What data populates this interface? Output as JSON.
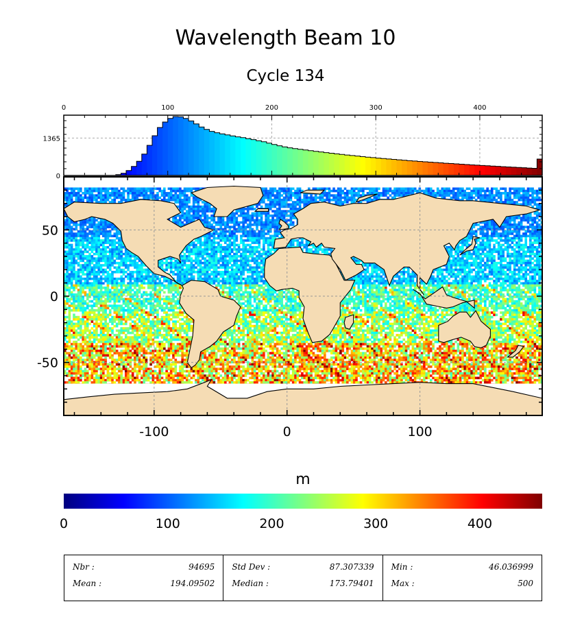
{
  "title": "Wavelength Beam 10",
  "subtitle": "Cycle 134",
  "colors": {
    "land": "#f5dcb4",
    "ocean_empty": "#ffffff",
    "histogram_outline": "#000000",
    "colormap": [
      "#00007f",
      "#0000ff",
      "#007fff",
      "#00ffff",
      "#7fff7f",
      "#ffff00",
      "#ff7f00",
      "#ff0000",
      "#7f0000"
    ]
  },
  "chart_data": [
    {
      "type": "bar",
      "name": "histogram",
      "x_ticks": [
        "0",
        "100",
        "200",
        "300",
        "400"
      ],
      "x_tick_values": [
        0,
        100,
        200,
        300,
        400
      ],
      "xlim": [
        0,
        460
      ],
      "y_ticks": [
        "0",
        "1365"
      ],
      "y_tick_values": [
        0,
        1365
      ],
      "ylim": [
        0,
        2200
      ],
      "grid": true,
      "bin_width": 5,
      "bin_starts": [
        50,
        55,
        60,
        65,
        70,
        75,
        80,
        85,
        90,
        95,
        100,
        105,
        110,
        115,
        120,
        125,
        130,
        135,
        140,
        145,
        150,
        155,
        160,
        165,
        170,
        175,
        180,
        185,
        190,
        195,
        200,
        205,
        210,
        215,
        220,
        225,
        230,
        235,
        240,
        245,
        250,
        255,
        260,
        265,
        270,
        275,
        280,
        285,
        290,
        295,
        300,
        305,
        310,
        315,
        320,
        325,
        330,
        335,
        340,
        345,
        350,
        355,
        360,
        365,
        370,
        375,
        380,
        385,
        390,
        395,
        400,
        405,
        410,
        415,
        420,
        425,
        430,
        435,
        440,
        445,
        450,
        455
      ],
      "counts": [
        30,
        80,
        180,
        330,
        520,
        780,
        1100,
        1450,
        1750,
        1950,
        2080,
        2150,
        2140,
        2080,
        1990,
        1880,
        1770,
        1680,
        1610,
        1560,
        1520,
        1480,
        1445,
        1410,
        1380,
        1345,
        1310,
        1270,
        1230,
        1180,
        1130,
        1085,
        1045,
        1010,
        980,
        955,
        930,
        905,
        880,
        858,
        835,
        812,
        790,
        768,
        748,
        728,
        708,
        688,
        670,
        652,
        635,
        620,
        604,
        588,
        572,
        557,
        542,
        528,
        514,
        500,
        487,
        474,
        461,
        448,
        436,
        424,
        412,
        400,
        388,
        377,
        366,
        355,
        344,
        333,
        323,
        313,
        303,
        293,
        283,
        273,
        263,
        600
      ]
    },
    {
      "type": "heatmap",
      "name": "map",
      "variable": "Wavelength Beam 10",
      "unit": "m",
      "x_ticks": [
        "-100",
        "0",
        "100"
      ],
      "x_tick_values": [
        -100,
        0,
        100
      ],
      "y_ticks": [
        "-50",
        "0",
        "50"
      ],
      "y_tick_values": [
        -50,
        0,
        50
      ],
      "xlim": [
        -168,
        192
      ],
      "ylim": [
        -90,
        90
      ],
      "grid": true
    },
    {
      "type": "colorbar",
      "name": "colorbar",
      "label": "m",
      "ticks": [
        "0",
        "100",
        "200",
        "300",
        "400"
      ],
      "tick_values": [
        0,
        100,
        200,
        300,
        400
      ],
      "range": [
        0,
        460
      ]
    }
  ],
  "stats": {
    "nbr_label": "Nbr :",
    "nbr": "94695",
    "mean_label": "Mean :",
    "mean": "194.09502",
    "std_label": "Std Dev :",
    "std": "87.307339",
    "median_label": "Median :",
    "median": "173.79401",
    "min_label": "Min :",
    "min": "46.036999",
    "max_label": "Max :",
    "max": "500"
  }
}
